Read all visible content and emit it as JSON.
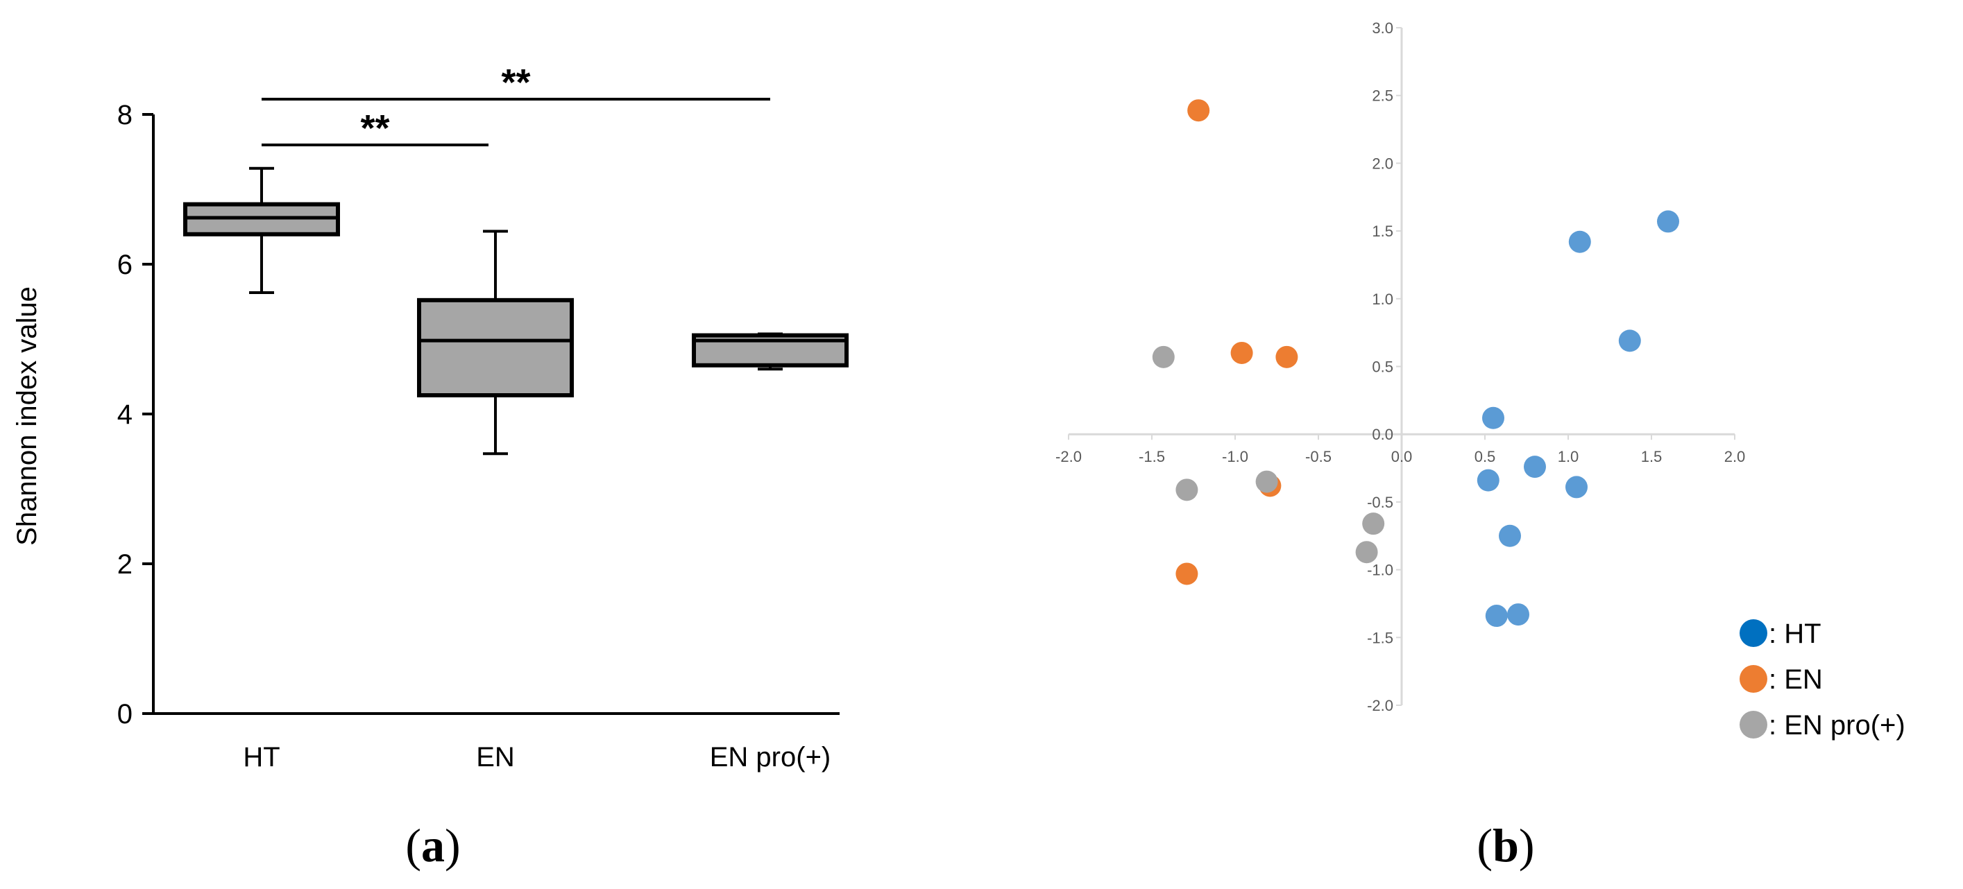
{
  "chart_data": [
    {
      "type": "box",
      "panel_label": "a",
      "ylabel": "Shannon index value",
      "xlabel": "",
      "ylim": [
        0,
        8
      ],
      "yticks": [
        "0",
        "2",
        "4",
        "6",
        "8"
      ],
      "categories": [
        "HT",
        "EN",
        "EN pro(+)"
      ],
      "boxes": [
        {
          "name": "HT",
          "whisker_low": 5.62,
          "q1": 6.4,
          "median": 6.62,
          "q3": 6.8,
          "whisker_high": 7.28
        },
        {
          "name": "EN",
          "whisker_low": 3.47,
          "q1": 4.25,
          "median": 4.98,
          "q3": 5.52,
          "whisker_high": 6.44
        },
        {
          "name": "EN pro(+)",
          "whisker_low": 4.6,
          "q1": 4.65,
          "median": 4.98,
          "q3": 5.05,
          "whisker_high": 5.07
        }
      ],
      "significance": [
        {
          "from": "HT",
          "to": "EN",
          "label": "**"
        },
        {
          "from": "HT",
          "to": "EN pro(+)",
          "label": "**"
        }
      ],
      "box_fill": "#a6a6a6"
    },
    {
      "type": "scatter",
      "panel_label": "b",
      "xlim": [
        -2.0,
        2.0
      ],
      "ylim": [
        -2.0,
        3.0
      ],
      "xticks": [
        "-2.0",
        "-1.5",
        "-1.0",
        "-0.5",
        "0.0",
        "0.5",
        "1.0",
        "1.5",
        "2.0"
      ],
      "yticks": [
        "-2.0",
        "-1.5",
        "-1.0",
        "-0.5",
        "0.0",
        "0.5",
        "1.0",
        "1.5",
        "2.0",
        "2.5",
        "3.0"
      ],
      "series": [
        {
          "name": ": HT",
          "legend_color": "#0070c0",
          "color": "#5b9bd5",
          "points": [
            [
              1.6,
              1.57
            ],
            [
              1.07,
              1.42
            ],
            [
              1.37,
              0.69
            ],
            [
              0.55,
              0.12
            ],
            [
              0.52,
              -0.34
            ],
            [
              0.8,
              -0.24
            ],
            [
              1.05,
              -0.39
            ],
            [
              0.65,
              -0.75
            ],
            [
              0.57,
              -1.34
            ],
            [
              0.7,
              -1.33
            ]
          ]
        },
        {
          "name": ": EN",
          "legend_color": "#ed7d31",
          "color": "#ed7d31",
          "points": [
            [
              -1.22,
              2.39
            ],
            [
              -0.96,
              0.6
            ],
            [
              -0.69,
              0.57
            ],
            [
              -0.79,
              -0.38
            ],
            [
              -1.29,
              -1.03
            ]
          ]
        },
        {
          "name": ": EN pro(+)",
          "legend_color": "#a6a6a6",
          "color": "#a5a5a5",
          "points": [
            [
              -1.43,
              0.57
            ],
            [
              -1.29,
              -0.41
            ],
            [
              -0.81,
              -0.35
            ],
            [
              -0.17,
              -0.66
            ],
            [
              -0.21,
              -0.87
            ]
          ]
        }
      ]
    }
  ]
}
